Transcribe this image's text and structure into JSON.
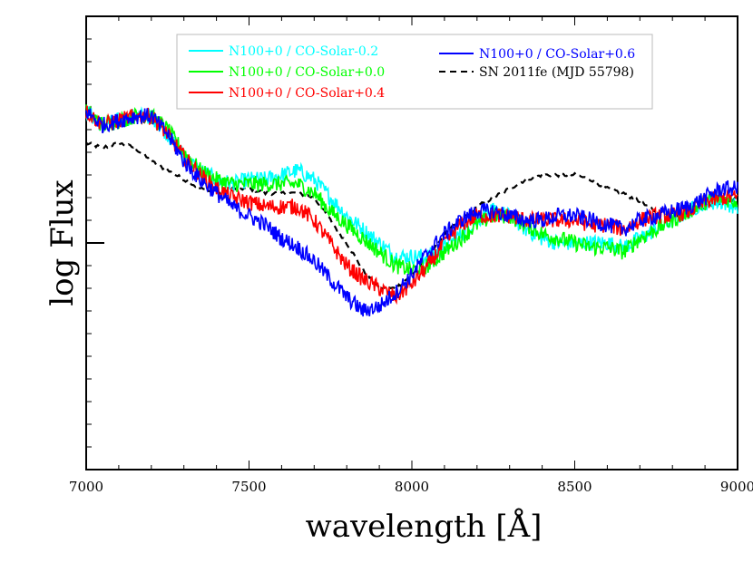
{
  "chart_data": {
    "type": "line",
    "xlabel": "wavelength [Å]",
    "ylabel": "log Flux",
    "xlim": [
      7000,
      9000
    ],
    "ylim": [
      0,
      1
    ],
    "x_ticks": [
      "7000",
      "7500",
      "8000",
      "8500",
      "9000"
    ],
    "y_tick_labels": "none",
    "grid": false,
    "legend_position": "top-center",
    "series": [
      {
        "name": "N100+0 / CO-Solar-0.2",
        "color": "#00ffff",
        "style": "solid",
        "noise": 0.018,
        "x": [
          7000,
          7050,
          7100,
          7150,
          7200,
          7250,
          7300,
          7350,
          7400,
          7450,
          7500,
          7550,
          7600,
          7650,
          7700,
          7750,
          7800,
          7850,
          7900,
          7950,
          8000,
          8050,
          8100,
          8150,
          8200,
          8250,
          8300,
          8350,
          8400,
          8450,
          8500,
          8550,
          8600,
          8650,
          8700,
          8750,
          8800,
          8850,
          8900,
          8950,
          9000
        ],
        "y": [
          0.79,
          0.76,
          0.77,
          0.78,
          0.78,
          0.74,
          0.69,
          0.66,
          0.64,
          0.63,
          0.64,
          0.64,
          0.65,
          0.66,
          0.64,
          0.6,
          0.56,
          0.53,
          0.5,
          0.47,
          0.47,
          0.47,
          0.49,
          0.52,
          0.55,
          0.57,
          0.56,
          0.53,
          0.51,
          0.5,
          0.5,
          0.5,
          0.5,
          0.49,
          0.51,
          0.53,
          0.55,
          0.57,
          0.59,
          0.59,
          0.58
        ]
      },
      {
        "name": "N100+0 / CO-Solar+0.0",
        "color": "#00ff00",
        "style": "solid",
        "noise": 0.018,
        "x": [
          7000,
          7050,
          7100,
          7150,
          7200,
          7250,
          7300,
          7350,
          7400,
          7450,
          7500,
          7550,
          7600,
          7650,
          7700,
          7750,
          7800,
          7850,
          7900,
          7950,
          8000,
          8050,
          8100,
          8150,
          8200,
          8250,
          8300,
          8350,
          8400,
          8450,
          8500,
          8550,
          8600,
          8650,
          8700,
          8750,
          8800,
          8850,
          8900,
          8950,
          9000
        ],
        "y": [
          0.79,
          0.76,
          0.77,
          0.78,
          0.78,
          0.75,
          0.7,
          0.66,
          0.64,
          0.63,
          0.63,
          0.63,
          0.63,
          0.63,
          0.61,
          0.57,
          0.54,
          0.51,
          0.48,
          0.45,
          0.44,
          0.45,
          0.48,
          0.51,
          0.54,
          0.56,
          0.56,
          0.54,
          0.52,
          0.51,
          0.5,
          0.49,
          0.49,
          0.48,
          0.51,
          0.53,
          0.55,
          0.57,
          0.59,
          0.6,
          0.59
        ]
      },
      {
        "name": "N100+0 / CO-Solar+0.4",
        "color": "#ff0000",
        "style": "solid",
        "noise": 0.018,
        "x": [
          7000,
          7050,
          7100,
          7150,
          7200,
          7250,
          7300,
          7350,
          7400,
          7450,
          7500,
          7550,
          7600,
          7650,
          7700,
          7750,
          7800,
          7850,
          7900,
          7950,
          8000,
          8050,
          8100,
          8150,
          8200,
          8250,
          8300,
          8350,
          8400,
          8450,
          8500,
          8550,
          8600,
          8650,
          8700,
          8750,
          8800,
          8850,
          8900,
          8950,
          9000
        ],
        "y": [
          0.79,
          0.76,
          0.77,
          0.78,
          0.78,
          0.74,
          0.69,
          0.65,
          0.62,
          0.6,
          0.59,
          0.58,
          0.58,
          0.58,
          0.55,
          0.5,
          0.45,
          0.42,
          0.4,
          0.38,
          0.41,
          0.45,
          0.5,
          0.54,
          0.56,
          0.56,
          0.56,
          0.55,
          0.55,
          0.55,
          0.55,
          0.54,
          0.54,
          0.53,
          0.55,
          0.56,
          0.56,
          0.57,
          0.59,
          0.6,
          0.6
        ]
      },
      {
        "name": "N100+0 / CO-Solar+0.6",
        "color": "#0000ff",
        "style": "solid",
        "noise": 0.018,
        "x": [
          7000,
          7050,
          7100,
          7150,
          7200,
          7250,
          7300,
          7350,
          7400,
          7450,
          7500,
          7550,
          7600,
          7650,
          7700,
          7750,
          7800,
          7850,
          7900,
          7950,
          8000,
          8050,
          8100,
          8150,
          8200,
          8250,
          8300,
          8350,
          8400,
          8450,
          8500,
          8550,
          8600,
          8650,
          8700,
          8750,
          8800,
          8850,
          8900,
          8950,
          9000
        ],
        "y": [
          0.79,
          0.76,
          0.77,
          0.78,
          0.78,
          0.74,
          0.68,
          0.64,
          0.61,
          0.58,
          0.56,
          0.54,
          0.51,
          0.49,
          0.46,
          0.42,
          0.38,
          0.35,
          0.36,
          0.39,
          0.43,
          0.48,
          0.52,
          0.55,
          0.57,
          0.57,
          0.56,
          0.55,
          0.55,
          0.56,
          0.56,
          0.55,
          0.54,
          0.53,
          0.55,
          0.56,
          0.57,
          0.58,
          0.6,
          0.62,
          0.62
        ]
      },
      {
        "name": "SN 2011fe (MJD 55798)",
        "color": "#000000",
        "style": "dashed",
        "noise": 0.004,
        "x": [
          7000,
          7050,
          7100,
          7150,
          7200,
          7250,
          7300,
          7350,
          7400,
          7450,
          7500,
          7550,
          7600,
          7650,
          7700,
          7750,
          7800,
          7850,
          7900,
          7950,
          8000,
          8050,
          8100,
          8150,
          8200,
          8250,
          8300,
          8350,
          8400,
          8450,
          8500,
          8550,
          8600,
          8650,
          8700,
          8750,
          8800,
          8850,
          8900,
          8950,
          9000
        ],
        "y": [
          0.72,
          0.71,
          0.72,
          0.71,
          0.68,
          0.66,
          0.64,
          0.62,
          0.61,
          0.62,
          0.62,
          0.61,
          0.61,
          0.61,
          0.6,
          0.55,
          0.5,
          0.44,
          0.4,
          0.4,
          0.43,
          0.47,
          0.52,
          0.55,
          0.58,
          0.6,
          0.62,
          0.64,
          0.65,
          0.65,
          0.65,
          0.64,
          0.62,
          0.61,
          0.59,
          0.57,
          0.56,
          0.57,
          0.58,
          0.59,
          0.6
        ]
      }
    ]
  }
}
